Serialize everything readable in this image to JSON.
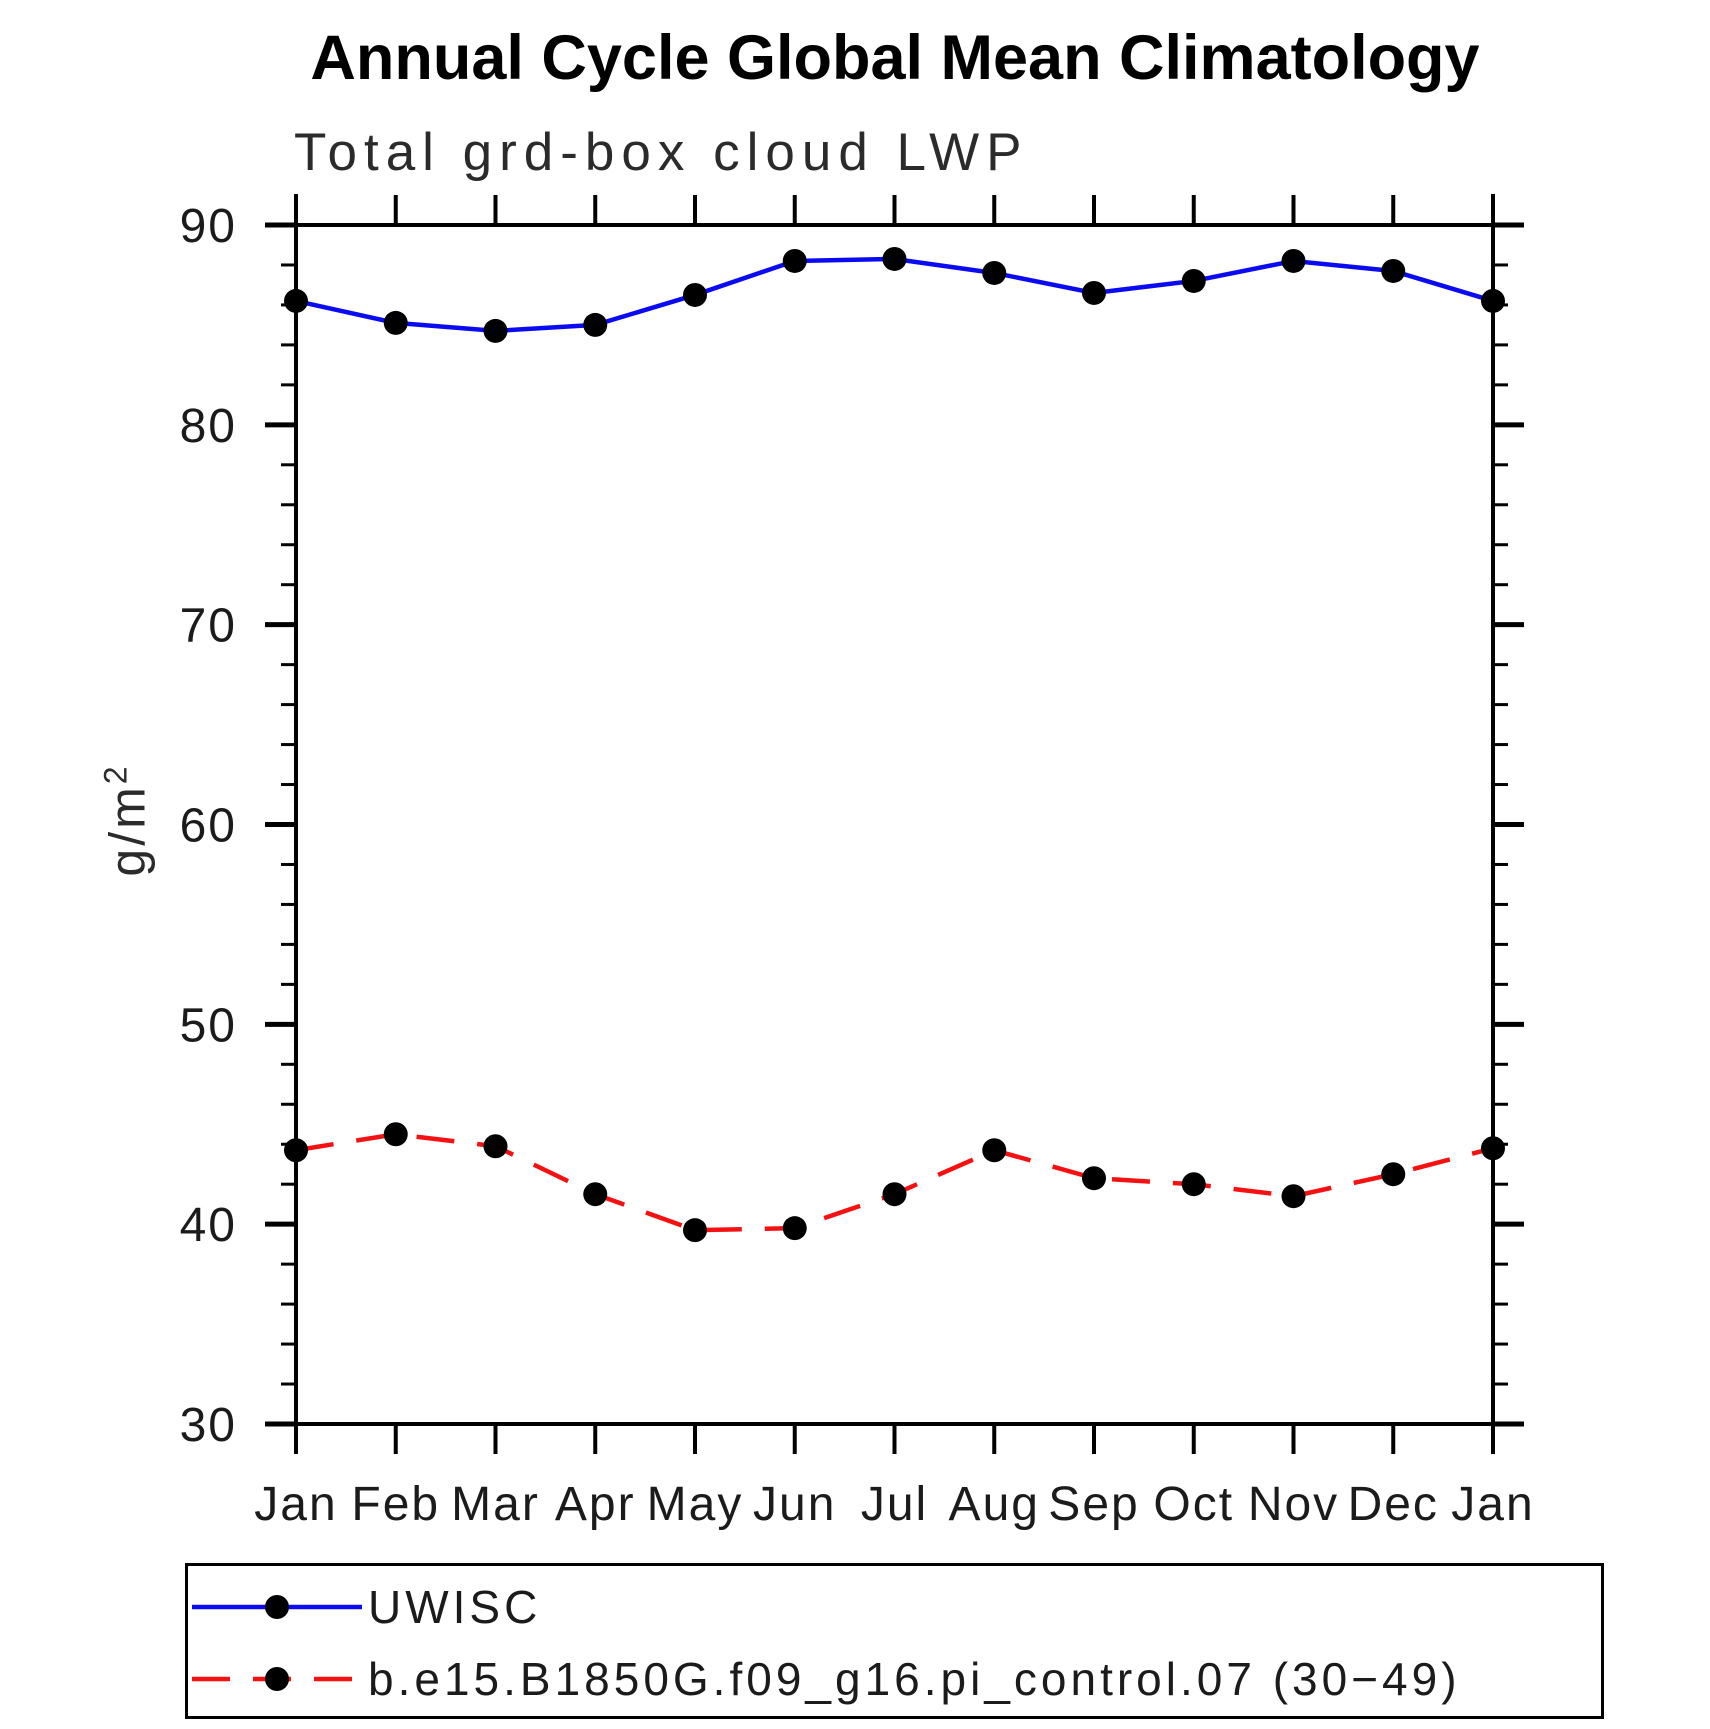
{
  "chart_data": {
    "type": "line",
    "title": "Annual Cycle Global Mean Climatology",
    "subtitle": "Total grd-box cloud LWP",
    "ylabel_base": "g/m",
    "ylabel_exponent": "2",
    "xlabel": "",
    "x_tick_labels": [
      "Jan",
      "Feb",
      "Mar",
      "Apr",
      "May",
      "Jun",
      "Jul",
      "Aug",
      "Sep",
      "Oct",
      "Nov",
      "Dec",
      "Jan"
    ],
    "y_axis": {
      "min": 30,
      "max": 90,
      "major_tick_step": 10,
      "minor_tick_step": 2,
      "major_tick_labels": [
        "90",
        "80",
        "70",
        "60",
        "50",
        "40",
        "30"
      ]
    },
    "grid": "off",
    "legend_position": "bottom-left-box",
    "axis_color": "#000000",
    "marker_color": "#000000",
    "series": [
      {
        "name": "UWISC",
        "line_color": "#0b0bf2",
        "line_style": "solid",
        "marker": "filled-circle",
        "values": [
          86.2,
          85.1,
          84.7,
          85.0,
          86.5,
          88.2,
          88.3,
          87.6,
          86.6,
          87.2,
          88.2,
          87.7,
          86.2
        ]
      },
      {
        "name": "b.e15.B1850G.f09_g16.pi_control.07 (30−49)",
        "line_color": "#f51111",
        "line_style": "dashed",
        "marker": "filled-circle",
        "values": [
          43.7,
          44.5,
          43.9,
          41.5,
          39.7,
          39.8,
          41.5,
          43.7,
          42.3,
          42.0,
          41.4,
          42.5,
          43.8
        ]
      }
    ]
  }
}
